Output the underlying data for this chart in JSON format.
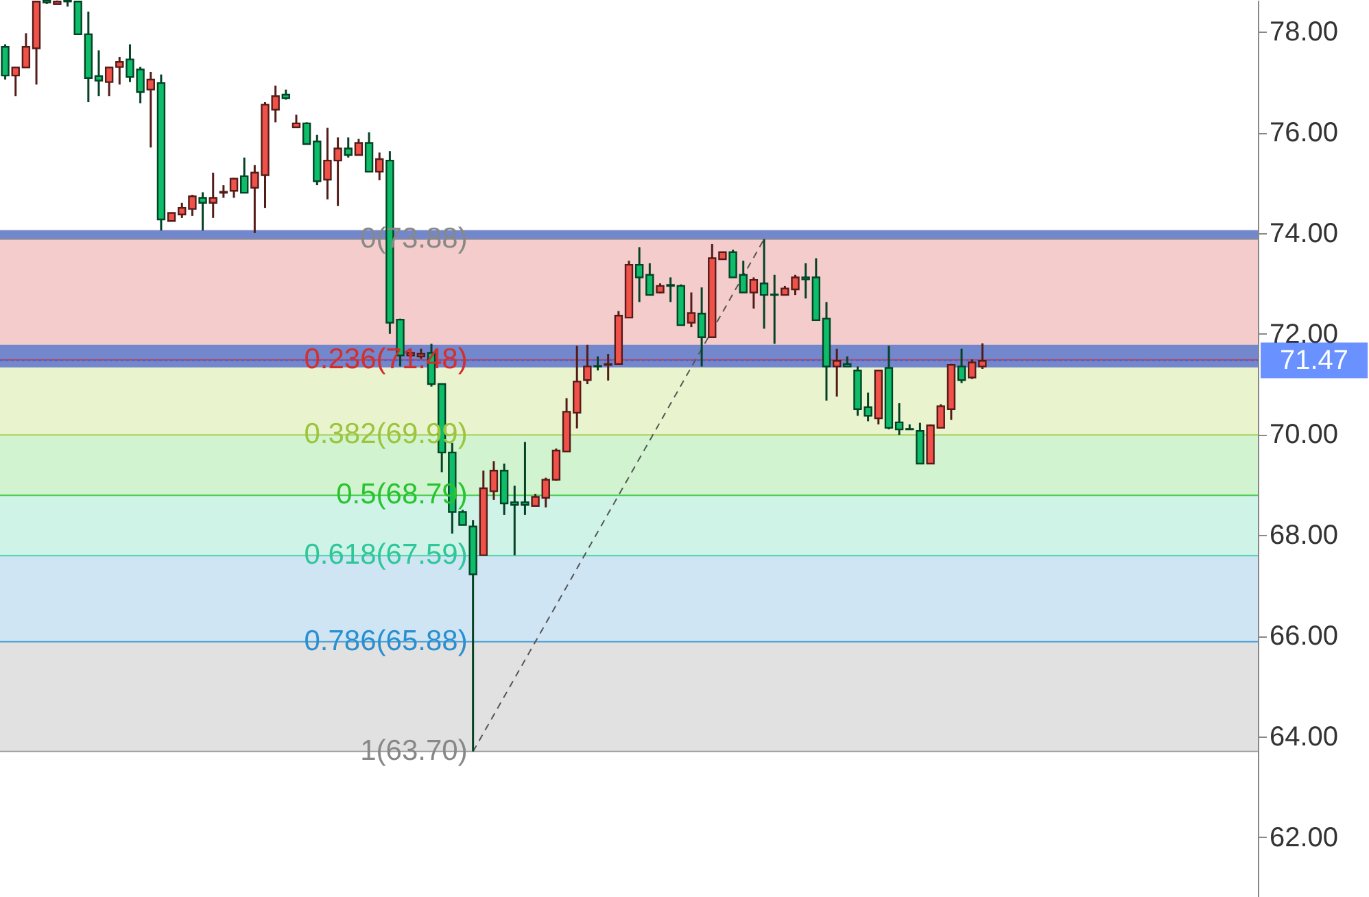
{
  "chart_data": {
    "type": "candlestick",
    "categories": [
      null,
      null,
      null,
      null,
      null,
      null,
      null,
      null,
      null,
      null,
      null,
      null,
      null,
      null,
      null,
      null,
      null,
      null,
      null,
      null,
      null,
      null,
      null,
      null,
      null,
      null,
      null,
      null,
      null,
      null,
      null,
      null,
      null,
      null,
      null,
      null,
      null,
      null,
      null,
      null,
      null,
      null,
      null,
      null,
      null,
      null,
      null,
      null,
      null,
      null,
      null,
      null,
      null,
      null,
      null,
      null,
      null,
      null,
      null,
      null,
      null,
      null,
      null,
      null,
      null,
      null,
      null,
      null,
      null,
      null,
      null,
      null,
      null,
      null,
      null,
      null,
      null,
      null,
      null,
      null,
      null,
      null,
      null,
      null,
      null,
      null,
      null,
      null,
      null,
      null,
      null,
      null,
      null,
      null,
      null,
      null,
      null,
      null,
      null,
      null,
      null,
      null,
      null,
      null,
      null,
      null,
      null,
      null,
      null,
      null,
      null,
      null,
      null,
      null,
      null,
      null,
      null,
      null,
      null,
      null,
      null
    ],
    "ohlc": [
      [
        77.7,
        77.75,
        77.05,
        77.13
      ],
      [
        77.13,
        77.3,
        76.72,
        77.29
      ],
      [
        77.29,
        77.97,
        77.29,
        77.7
      ],
      [
        77.67,
        78.6,
        76.95,
        78.6
      ],
      [
        78.62,
        78.62,
        78.55,
        78.58
      ],
      [
        78.55,
        78.62,
        78.55,
        78.6
      ],
      [
        78.62,
        78.62,
        78.5,
        78.6
      ],
      [
        78.6,
        78.6,
        77.95,
        77.95
      ],
      [
        77.95,
        78.4,
        76.6,
        77.08
      ],
      [
        77.12,
        77.63,
        76.72,
        77.03
      ],
      [
        77.0,
        77.3,
        76.72,
        77.29
      ],
      [
        77.3,
        77.5,
        76.95,
        77.4
      ],
      [
        77.45,
        77.75,
        77.0,
        77.1
      ],
      [
        77.25,
        77.3,
        76.58,
        76.8
      ],
      [
        76.85,
        77.2,
        75.7,
        77.05
      ],
      [
        76.98,
        77.15,
        74.05,
        74.27
      ],
      [
        74.24,
        74.4,
        74.24,
        74.4
      ],
      [
        74.37,
        74.6,
        74.3,
        74.5
      ],
      [
        74.48,
        74.76,
        74.34,
        74.73
      ],
      [
        74.7,
        74.81,
        74.05,
        74.6
      ],
      [
        74.6,
        75.2,
        74.3,
        74.7
      ],
      [
        74.8,
        74.95,
        74.7,
        74.82
      ],
      [
        74.84,
        75.1,
        74.7,
        75.08
      ],
      [
        75.13,
        75.5,
        74.8,
        74.8
      ],
      [
        74.9,
        75.35,
        74.0,
        75.2
      ],
      [
        75.15,
        76.6,
        74.5,
        76.55
      ],
      [
        76.45,
        76.93,
        76.2,
        76.72
      ],
      [
        76.75,
        76.85,
        76.65,
        76.68
      ],
      [
        76.1,
        76.35,
        76.1,
        76.18
      ],
      [
        76.18,
        76.2,
        75.77,
        75.77
      ],
      [
        75.82,
        75.95,
        74.95,
        75.03
      ],
      [
        75.06,
        76.09,
        74.67,
        75.44
      ],
      [
        75.44,
        75.9,
        74.54,
        75.68
      ],
      [
        75.68,
        75.9,
        75.5,
        75.55
      ],
      [
        75.55,
        75.87,
        75.55,
        75.79
      ],
      [
        75.79,
        76.0,
        75.22,
        75.22
      ],
      [
        75.22,
        75.6,
        75.05,
        75.47
      ],
      [
        75.44,
        75.63,
        72.0,
        72.22
      ],
      [
        72.28,
        72.3,
        71.35,
        71.57
      ],
      [
        71.57,
        71.65,
        71.55,
        71.62
      ],
      [
        71.55,
        71.7,
        71.5,
        71.6
      ],
      [
        71.62,
        71.8,
        70.95,
        71.0
      ],
      [
        71.0,
        71.0,
        69.25,
        69.64
      ],
      [
        69.64,
        69.83,
        68.03,
        68.46
      ],
      [
        68.46,
        68.5,
        68.2,
        68.2
      ],
      [
        68.17,
        68.3,
        63.7,
        67.22
      ],
      [
        67.6,
        69.28,
        67.6,
        68.93
      ],
      [
        68.87,
        69.47,
        68.7,
        69.28
      ],
      [
        69.28,
        69.42,
        68.4,
        68.63
      ],
      [
        68.65,
        68.98,
        67.6,
        68.6
      ],
      [
        68.65,
        69.85,
        68.4,
        68.6
      ],
      [
        68.58,
        68.82,
        68.58,
        68.76
      ],
      [
        68.74,
        69.14,
        68.55,
        69.1
      ],
      [
        69.1,
        69.72,
        69.08,
        69.68
      ],
      [
        69.66,
        70.72,
        69.66,
        70.45
      ],
      [
        70.43,
        71.76,
        70.12,
        71.05
      ],
      [
        71.08,
        71.78,
        71.0,
        71.35
      ],
      [
        71.36,
        71.55,
        71.27,
        71.35
      ],
      [
        71.38,
        71.6,
        71.07,
        71.4
      ],
      [
        71.4,
        72.45,
        71.4,
        72.36
      ],
      [
        72.32,
        73.45,
        72.32,
        73.37
      ],
      [
        73.37,
        73.72,
        72.63,
        73.12
      ],
      [
        73.17,
        73.4,
        72.77,
        72.77
      ],
      [
        72.82,
        73.0,
        72.8,
        72.95
      ],
      [
        72.97,
        73.12,
        72.63,
        72.95
      ],
      [
        72.95,
        72.98,
        72.17,
        72.17
      ],
      [
        72.22,
        72.82,
        72.13,
        72.41
      ],
      [
        72.4,
        72.92,
        71.35,
        71.93
      ],
      [
        71.93,
        73.78,
        71.93,
        73.5
      ],
      [
        73.48,
        73.62,
        73.48,
        73.62
      ],
      [
        73.62,
        73.67,
        73.12,
        73.12
      ],
      [
        73.17,
        73.45,
        72.82,
        72.82
      ],
      [
        72.82,
        73.12,
        72.5,
        73.07
      ],
      [
        73.0,
        73.88,
        72.1,
        72.77
      ],
      [
        72.78,
        73.17,
        71.8,
        72.77
      ],
      [
        72.77,
        72.95,
        72.77,
        72.9
      ],
      [
        72.88,
        73.17,
        72.77,
        73.12
      ],
      [
        73.12,
        73.4,
        72.7,
        73.08
      ],
      [
        73.12,
        73.5,
        72.27,
        72.27
      ],
      [
        72.3,
        72.63,
        70.67,
        71.35
      ],
      [
        71.35,
        71.7,
        70.75,
        71.46
      ],
      [
        71.4,
        71.55,
        71.35,
        71.35
      ],
      [
        71.27,
        71.35,
        70.37,
        70.5
      ],
      [
        70.54,
        70.83,
        70.26,
        70.37
      ],
      [
        70.32,
        71.27,
        70.2,
        71.27
      ],
      [
        71.32,
        71.76,
        70.1,
        70.13
      ],
      [
        70.24,
        70.62,
        69.99,
        70.1
      ],
      [
        70.11,
        70.2,
        70.1,
        70.1
      ],
      [
        70.07,
        70.23,
        69.42,
        69.42
      ],
      [
        69.42,
        70.2,
        69.42,
        70.18
      ],
      [
        70.13,
        70.6,
        70.13,
        70.56
      ],
      [
        70.5,
        71.4,
        70.29,
        71.38
      ],
      [
        71.35,
        71.7,
        71.02,
        71.08
      ],
      [
        71.13,
        71.49,
        71.1,
        71.43
      ],
      [
        71.35,
        71.81,
        71.3,
        71.46
      ],
      null,
      null,
      null,
      null,
      null,
      null,
      null,
      null,
      null,
      null,
      null,
      null,
      null,
      null,
      null,
      null,
      null,
      null,
      null,
      null,
      null,
      null,
      null,
      null,
      null,
      null
    ],
    "colors": [
      "#0dbd6a",
      "#f0524a",
      "#f0524a",
      "#f0524a",
      "#0dbd6a",
      "#f0524a",
      "#0dbd6a",
      "#0dbd6a",
      "#0dbd6a",
      "#0dbd6a",
      "#f0524a",
      "#f0524a",
      "#0dbd6a",
      "#0dbd6a",
      "#f0524a",
      "#0dbd6a",
      "#f0524a",
      "#f0524a",
      "#f0524a",
      "#0dbd6a",
      "#f0524a",
      "#f0524a",
      "#f0524a",
      "#0dbd6a",
      "#f0524a",
      "#f0524a",
      "#f0524a",
      "#0dbd6a",
      "#f0524a",
      "#0dbd6a",
      "#0dbd6a",
      "#f0524a",
      "#f0524a",
      "#0dbd6a",
      "#f0524a",
      "#0dbd6a",
      "#f0524a",
      "#0dbd6a",
      "#0dbd6a",
      "#f0524a",
      "#f0524a",
      "#0dbd6a",
      "#0dbd6a",
      "#0dbd6a",
      "#0dbd6a",
      "#0dbd6a",
      "#f0524a",
      "#f0524a",
      "#0dbd6a",
      "#0dbd6a",
      "#0dbd6a",
      "#f0524a",
      "#f0524a",
      "#f0524a",
      "#f0524a",
      "#f0524a",
      "#f0524a",
      "#0dbd6a",
      "#f0524a",
      "#f0524a",
      "#f0524a",
      "#0dbd6a",
      "#0dbd6a",
      "#f0524a",
      "#0dbd6a",
      "#0dbd6a",
      "#f0524a",
      "#0dbd6a",
      "#f0524a",
      "#f0524a",
      "#0dbd6a",
      "#0dbd6a",
      "#f0524a",
      "#0dbd6a",
      "#0dbd6a",
      "#f0524a",
      "#f0524a",
      "#0dbd6a",
      "#0dbd6a",
      "#0dbd6a",
      "#f0524a",
      "#0dbd6a",
      "#0dbd6a",
      "#0dbd6a",
      "#f0524a",
      "#0dbd6a",
      "#0dbd6a",
      "#0dbd6a",
      "#0dbd6a",
      "#f0524a",
      "#f0524a",
      "#f0524a",
      "#0dbd6a",
      "#f0524a",
      "#f0524a",
      null,
      null,
      null,
      null,
      null,
      null,
      null,
      null,
      null,
      null,
      null,
      null,
      null,
      null,
      null,
      null,
      null,
      null,
      null,
      null,
      null,
      null,
      null,
      null,
      null,
      null
    ],
    "series": [
      {
        "type": "line",
        "color": "#555555",
        "line_style": "dashed",
        "values": [
          null,
          null,
          null,
          null,
          null,
          null,
          null,
          null,
          null,
          null,
          null,
          null,
          null,
          null,
          null,
          null,
          null,
          null,
          null,
          null,
          null,
          null,
          null,
          null,
          null,
          null,
          null,
          null,
          null,
          null,
          null,
          null,
          null,
          null,
          null,
          null,
          null,
          null,
          null,
          null,
          null,
          null,
          null,
          null,
          null,
          63.7,
          null,
          null,
          null,
          null,
          null,
          null,
          null,
          null,
          null,
          null,
          null,
          null,
          null,
          null,
          null,
          null,
          null,
          null,
          null,
          null,
          null,
          null,
          null,
          null,
          null,
          null,
          null,
          73.88,
          null,
          null,
          null,
          null,
          null,
          null,
          null,
          null,
          null,
          null,
          null,
          null,
          null,
          null,
          null,
          null,
          null,
          null,
          null,
          null,
          null,
          null,
          null,
          null,
          null,
          null,
          null,
          null,
          null,
          null,
          null,
          null,
          null,
          null,
          null,
          null,
          null,
          null,
          null,
          null,
          null,
          null,
          null,
          null,
          null,
          null,
          null
        ]
      }
    ],
    "ylim": [
      60.81,
      78.63
    ],
    "yticks": [
      {
        "value": 62,
        "label": "62.00"
      },
      {
        "value": 64,
        "label": "64.00"
      },
      {
        "value": 66,
        "label": "66.00"
      },
      {
        "value": 68,
        "label": "68.00"
      },
      {
        "value": 70,
        "label": "70.00"
      },
      {
        "value": 72,
        "label": "72.00"
      },
      {
        "value": 74,
        "label": "74.00"
      },
      {
        "value": 76,
        "label": "76.00"
      },
      {
        "value": 78,
        "label": "78.00"
      }
    ],
    "tick_labels": "y",
    "bands": [
      {
        "axis": "y",
        "from": 71.48,
        "to": 73.88,
        "color": "#f4cccc"
      },
      {
        "axis": "y",
        "from": 69.99,
        "to": 71.48,
        "color": "#e9f4cf"
      },
      {
        "axis": "y",
        "from": 68.79,
        "to": 69.99,
        "color": "#d1f3d0"
      },
      {
        "axis": "y",
        "from": 67.59,
        "to": 68.79,
        "color": "#cff3e7"
      },
      {
        "axis": "y",
        "from": 65.88,
        "to": 67.59,
        "color": "#cfe5f3"
      },
      {
        "axis": "y",
        "from": 63.7,
        "to": 65.88,
        "color": "#e1e1e1"
      },
      {
        "axis": "y",
        "from": 73.88,
        "to": 74.06,
        "color": "#7387cc"
      },
      {
        "axis": "y",
        "from": 71.33,
        "to": 71.78,
        "color": "#7387cc"
      }
    ],
    "ref_lines": [
      {
        "axis": "y",
        "value": 73.88,
        "label": "0(73.88)",
        "color": "#888888",
        "line_style": "solid"
      },
      {
        "axis": "y",
        "value": 71.48,
        "label": "0.236(71.48)",
        "color": "#d32f2f",
        "line_style": "solid"
      },
      {
        "axis": "y",
        "value": 69.99,
        "label": "0.382(69.99)",
        "color": "#9bc53d",
        "line_style": "solid"
      },
      {
        "axis": "y",
        "value": 68.79,
        "label": "0.5(68.79)",
        "color": "#27c42e",
        "line_style": "solid"
      },
      {
        "axis": "y",
        "value": 67.59,
        "label": "0.618(67.59)",
        "color": "#2ec79a",
        "line_style": "solid"
      },
      {
        "axis": "y",
        "value": 65.88,
        "label": "0.786(65.88)",
        "color": "#2a8fd0",
        "line_style": "solid"
      },
      {
        "axis": "y",
        "value": 63.7,
        "label": "1(63.70)",
        "color": "#888888",
        "line_style": "solid"
      },
      {
        "axis": "y",
        "value": 71.47,
        "label": "71.47",
        "color": "#2962ff",
        "line_style": "dotted"
      }
    ]
  }
}
